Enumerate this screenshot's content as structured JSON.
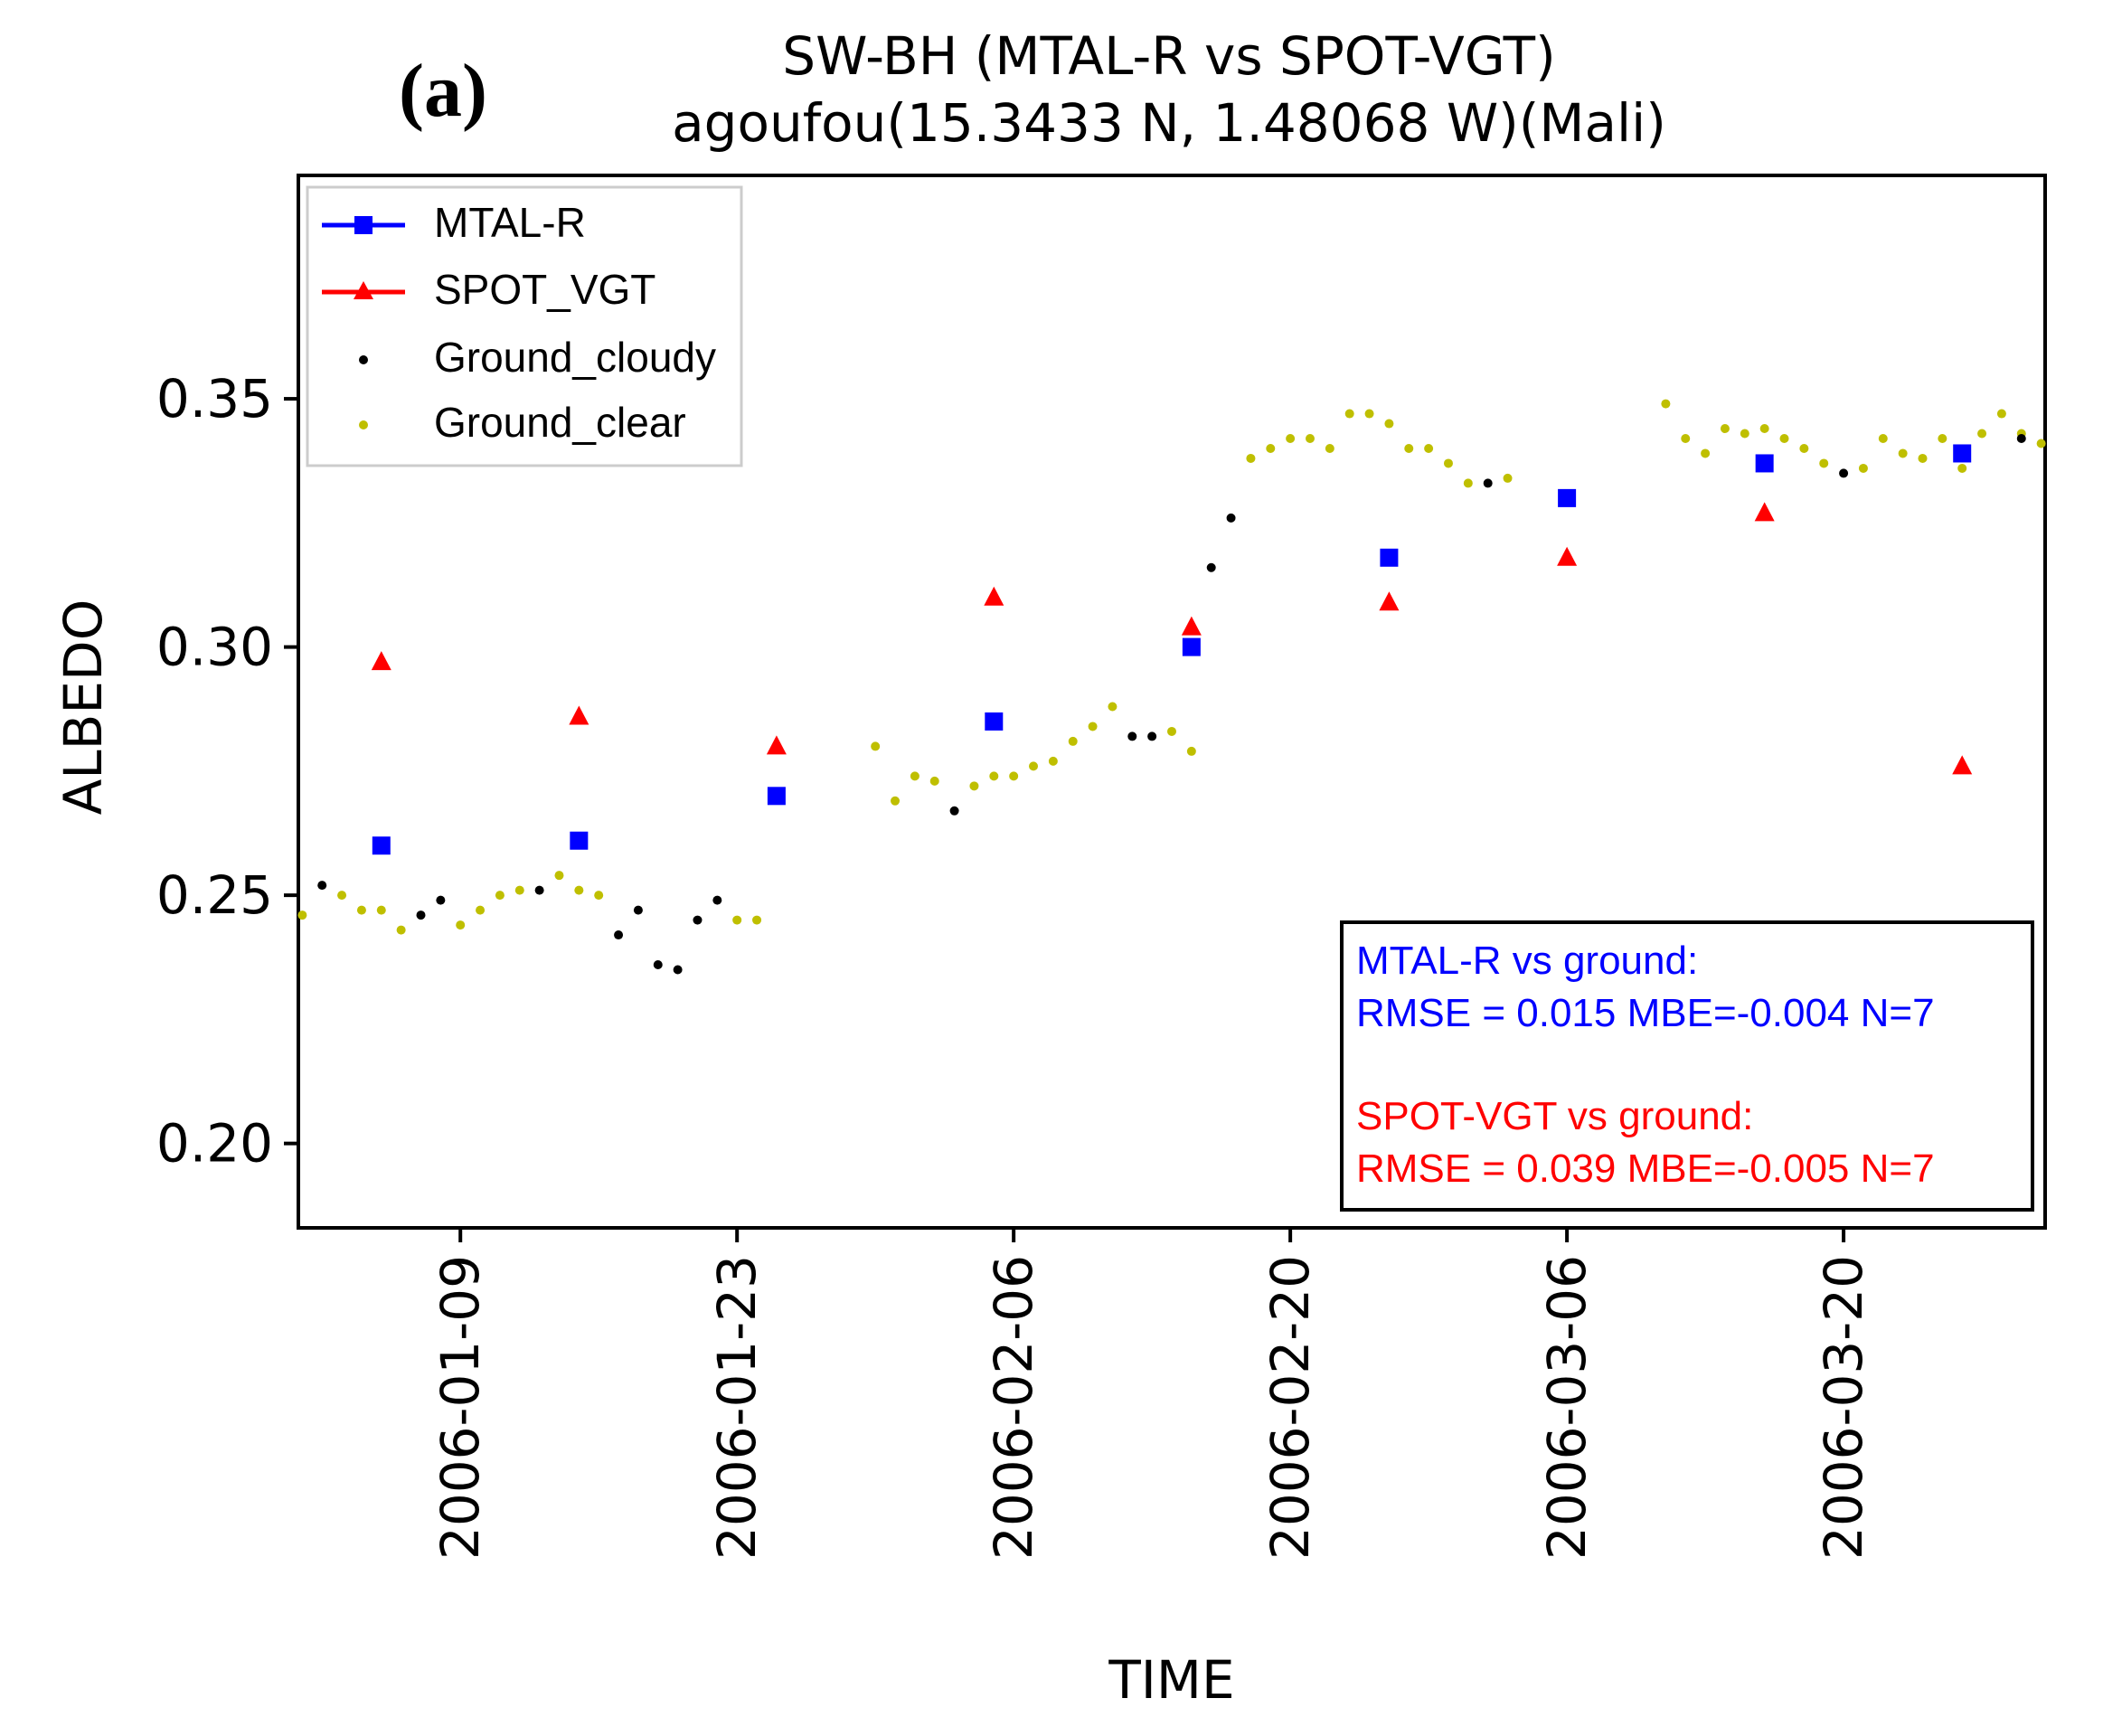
{
  "panel_label": "(a)",
  "chart_data": {
    "type": "scatter",
    "title": "SW-BH (MTAL-R vs SPOT-VGT)",
    "subtitle": "agoufou(15.3433 N, 1.48068 W)(Mali)",
    "xlabel": "TIME",
    "ylabel": "ALBEDO",
    "xlim": [
      "2006-01-01",
      "2006-03-30"
    ],
    "ylim": [
      0.183,
      0.395
    ],
    "yticks": [
      0.2,
      0.25,
      0.3,
      0.35
    ],
    "ytick_labels": [
      "0.20",
      "0.25",
      "0.30",
      "0.35"
    ],
    "xticks": [
      "2006-01-09",
      "2006-01-23",
      "2006-02-06",
      "2006-02-20",
      "2006-03-06",
      "2006-03-20"
    ],
    "grid": false,
    "legend_position": "top-left",
    "series": [
      {
        "name": "MTAL-R",
        "color": "#0000ff",
        "marker": "square",
        "points": [
          {
            "x": "2006-01-05",
            "y": 0.26
          },
          {
            "x": "2006-01-15",
            "y": 0.261
          },
          {
            "x": "2006-01-25",
            "y": 0.27
          },
          {
            "x": "2006-02-05",
            "y": 0.285
          },
          {
            "x": "2006-02-15",
            "y": 0.3
          },
          {
            "x": "2006-02-25",
            "y": 0.318
          },
          {
            "x": "2006-03-06",
            "y": 0.33
          },
          {
            "x": "2006-03-16",
            "y": 0.337
          },
          {
            "x": "2006-03-26",
            "y": 0.339
          }
        ]
      },
      {
        "name": "SPOT_VGT",
        "color": "#ff0000",
        "marker": "triangle",
        "points": [
          {
            "x": "2006-01-05",
            "y": 0.297
          },
          {
            "x": "2006-01-15",
            "y": 0.286
          },
          {
            "x": "2006-01-25",
            "y": 0.28
          },
          {
            "x": "2006-02-05",
            "y": 0.31
          },
          {
            "x": "2006-02-15",
            "y": 0.304
          },
          {
            "x": "2006-02-25",
            "y": 0.309
          },
          {
            "x": "2006-03-06",
            "y": 0.318
          },
          {
            "x": "2006-03-16",
            "y": 0.327
          },
          {
            "x": "2006-03-26",
            "y": 0.276
          }
        ]
      },
      {
        "name": "Ground_cloudy",
        "color": "#000000",
        "marker": "dot",
        "points": [
          {
            "x": "2006-01-02",
            "y": 0.252
          },
          {
            "x": "2006-01-07",
            "y": 0.246
          },
          {
            "x": "2006-01-08",
            "y": 0.249
          },
          {
            "x": "2006-01-13",
            "y": 0.251
          },
          {
            "x": "2006-01-17",
            "y": 0.242
          },
          {
            "x": "2006-01-18",
            "y": 0.247
          },
          {
            "x": "2006-01-19",
            "y": 0.236
          },
          {
            "x": "2006-01-20",
            "y": 0.235
          },
          {
            "x": "2006-01-21",
            "y": 0.245
          },
          {
            "x": "2006-01-22",
            "y": 0.249
          },
          {
            "x": "2006-02-03",
            "y": 0.267
          },
          {
            "x": "2006-02-12",
            "y": 0.282
          },
          {
            "x": "2006-02-13",
            "y": 0.282
          },
          {
            "x": "2006-02-16",
            "y": 0.316
          },
          {
            "x": "2006-02-17",
            "y": 0.326
          },
          {
            "x": "2006-03-02",
            "y": 0.333
          },
          {
            "x": "2006-03-20",
            "y": 0.335
          },
          {
            "x": "2006-03-29",
            "y": 0.342
          }
        ]
      },
      {
        "name": "Ground_clear",
        "color": "#bfbf00",
        "marker": "dot",
        "points": [
          {
            "x": "2006-01-01",
            "y": 0.246
          },
          {
            "x": "2006-01-03",
            "y": 0.25
          },
          {
            "x": "2006-01-04",
            "y": 0.247
          },
          {
            "x": "2006-01-05",
            "y": 0.247
          },
          {
            "x": "2006-01-06",
            "y": 0.243
          },
          {
            "x": "2006-01-09",
            "y": 0.244
          },
          {
            "x": "2006-01-10",
            "y": 0.247
          },
          {
            "x": "2006-01-11",
            "y": 0.25
          },
          {
            "x": "2006-01-12",
            "y": 0.251
          },
          {
            "x": "2006-01-14",
            "y": 0.254
          },
          {
            "x": "2006-01-15",
            "y": 0.251
          },
          {
            "x": "2006-01-16",
            "y": 0.25
          },
          {
            "x": "2006-01-23",
            "y": 0.245
          },
          {
            "x": "2006-01-24",
            "y": 0.245
          },
          {
            "x": "2006-01-30",
            "y": 0.28
          },
          {
            "x": "2006-01-31",
            "y": 0.269
          },
          {
            "x": "2006-02-01",
            "y": 0.274
          },
          {
            "x": "2006-02-02",
            "y": 0.273
          },
          {
            "x": "2006-02-04",
            "y": 0.272
          },
          {
            "x": "2006-02-05",
            "y": 0.274
          },
          {
            "x": "2006-02-06",
            "y": 0.274
          },
          {
            "x": "2006-02-07",
            "y": 0.276
          },
          {
            "x": "2006-02-08",
            "y": 0.277
          },
          {
            "x": "2006-02-09",
            "y": 0.281
          },
          {
            "x": "2006-02-10",
            "y": 0.284
          },
          {
            "x": "2006-02-11",
            "y": 0.288
          },
          {
            "x": "2006-02-14",
            "y": 0.283
          },
          {
            "x": "2006-02-15",
            "y": 0.279
          },
          {
            "x": "2006-02-18",
            "y": 0.338
          },
          {
            "x": "2006-02-19",
            "y": 0.34
          },
          {
            "x": "2006-02-20",
            "y": 0.342
          },
          {
            "x": "2006-02-21",
            "y": 0.342
          },
          {
            "x": "2006-02-22",
            "y": 0.34
          },
          {
            "x": "2006-02-23",
            "y": 0.347
          },
          {
            "x": "2006-02-24",
            "y": 0.347
          },
          {
            "x": "2006-02-25",
            "y": 0.345
          },
          {
            "x": "2006-02-26",
            "y": 0.34
          },
          {
            "x": "2006-02-27",
            "y": 0.34
          },
          {
            "x": "2006-02-28",
            "y": 0.337
          },
          {
            "x": "2006-03-01",
            "y": 0.333
          },
          {
            "x": "2006-03-03",
            "y": 0.334
          },
          {
            "x": "2006-03-11",
            "y": 0.349
          },
          {
            "x": "2006-03-12",
            "y": 0.342
          },
          {
            "x": "2006-03-13",
            "y": 0.339
          },
          {
            "x": "2006-03-14",
            "y": 0.344
          },
          {
            "x": "2006-03-15",
            "y": 0.343
          },
          {
            "x": "2006-03-16",
            "y": 0.344
          },
          {
            "x": "2006-03-17",
            "y": 0.342
          },
          {
            "x": "2006-03-18",
            "y": 0.34
          },
          {
            "x": "2006-03-19",
            "y": 0.337
          },
          {
            "x": "2006-03-21",
            "y": 0.336
          },
          {
            "x": "2006-03-22",
            "y": 0.342
          },
          {
            "x": "2006-03-23",
            "y": 0.339
          },
          {
            "x": "2006-03-24",
            "y": 0.338
          },
          {
            "x": "2006-03-25",
            "y": 0.342
          },
          {
            "x": "2006-03-26",
            "y": 0.336
          },
          {
            "x": "2006-03-27",
            "y": 0.343
          },
          {
            "x": "2006-03-28",
            "y": 0.347
          },
          {
            "x": "2006-03-29",
            "y": 0.343
          },
          {
            "x": "2006-03-30",
            "y": 0.341
          }
        ]
      }
    ],
    "annotations": {
      "mtal": {
        "color": "#0000ff",
        "line1": "MTAL-R vs ground:",
        "line2": "RMSE = 0.015  MBE=-0.004  N=7"
      },
      "spot": {
        "color": "#ff0000",
        "line1": "SPOT-VGT vs ground:",
        "line2": "RMSE = 0.039  MBE=-0.005  N=7"
      }
    }
  }
}
